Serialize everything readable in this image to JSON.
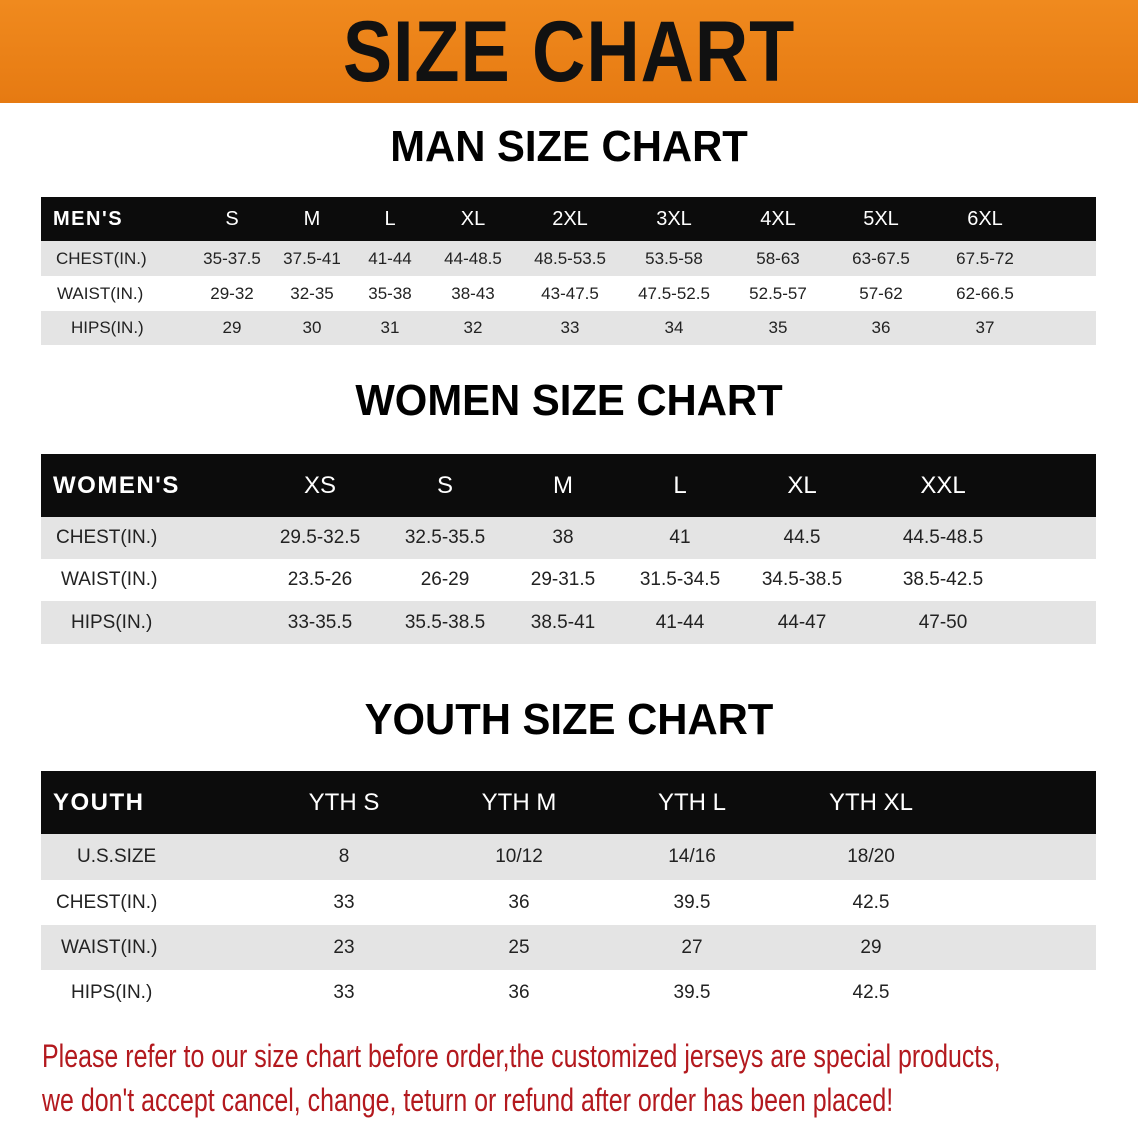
{
  "banner_title": "SIZE CHART",
  "men": {
    "title": "MAN SIZE CHART",
    "header": [
      "MEN'S",
      "S",
      "M",
      "L",
      "XL",
      "2XL",
      "3XL",
      "4XL",
      "5XL",
      "6XL"
    ],
    "rows": [
      [
        "CHEST(IN.)",
        "35-37.5",
        "37.5-41",
        "41-44",
        "44-48.5",
        "48.5-53.5",
        "53.5-58",
        "58-63",
        "63-67.5",
        "67.5-72"
      ],
      [
        "WAIST(IN.)",
        "29-32",
        "32-35",
        "35-38",
        "38-43",
        "43-47.5",
        "47.5-52.5",
        "52.5-57",
        "57-62",
        "62-66.5"
      ],
      [
        "HIPS(IN.)",
        "29",
        "30",
        "31",
        "32",
        "33",
        "34",
        "35",
        "36",
        "37"
      ]
    ]
  },
  "women": {
    "title": "WOMEN SIZE CHART",
    "header": [
      "WOMEN'S",
      "XS",
      "S",
      "M",
      "L",
      "XL",
      "XXL"
    ],
    "rows": [
      [
        "CHEST(IN.)",
        "29.5-32.5",
        "32.5-35.5",
        "38",
        "41",
        "44.5",
        "44.5-48.5"
      ],
      [
        "WAIST(IN.)",
        "23.5-26",
        "26-29",
        "29-31.5",
        "31.5-34.5",
        "34.5-38.5",
        "38.5-42.5"
      ],
      [
        "HIPS(IN.)",
        "33-35.5",
        "35.5-38.5",
        "38.5-41",
        "41-44",
        "44-47",
        "47-50"
      ]
    ]
  },
  "youth": {
    "title": "YOUTH SIZE CHART",
    "header": [
      "YOUTH",
      "YTH S",
      "YTH M",
      "YTH L",
      "YTH XL"
    ],
    "rows": [
      [
        "U.S.SIZE",
        "8",
        "10/12",
        "14/16",
        "18/20"
      ],
      [
        "CHEST(IN.)",
        "33",
        "36",
        "39.5",
        "42.5"
      ],
      [
        "WAIST(IN.)",
        "23",
        "25",
        "27",
        "29"
      ],
      [
        "HIPS(IN.)",
        "33",
        "36",
        "39.5",
        "42.5"
      ]
    ]
  },
  "notice": {
    "line1": "Please refer to our size chart before order,the customized jerseys are special products,",
    "line2": "we don't accept cancel, change, teturn or refund after order has been placed!"
  },
  "colors": {
    "banner": "#e67a12",
    "header_row": "#0c0c0c",
    "stripe": "#e4e4e4",
    "notice": "#b3191e"
  }
}
